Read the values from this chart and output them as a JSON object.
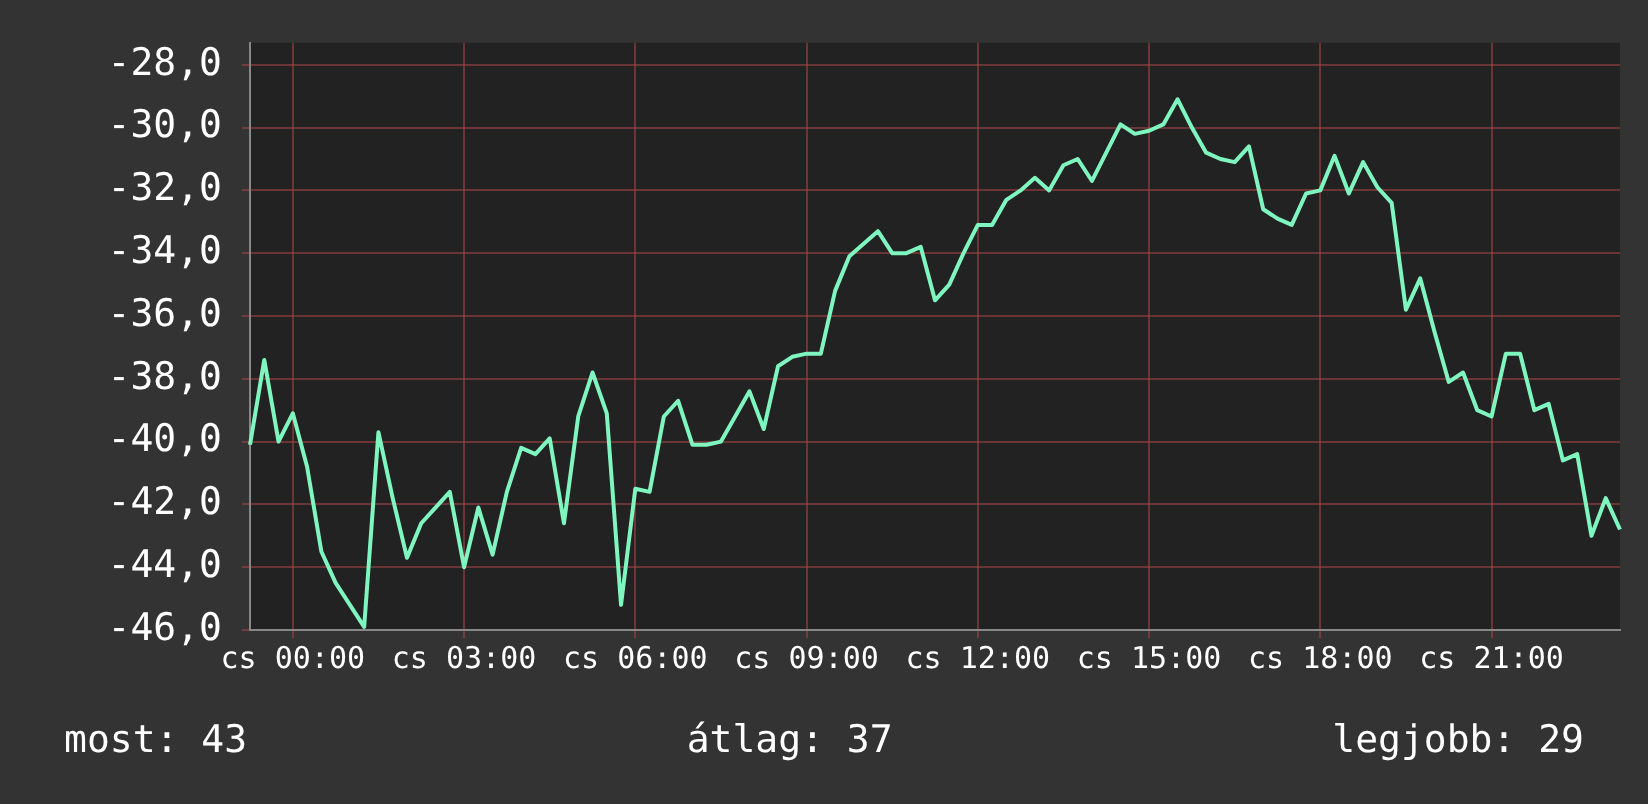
{
  "chart_data": {
    "type": "line",
    "categories": [
      null,
      null,
      null,
      "cs 00:00",
      null,
      null,
      null,
      null,
      null,
      null,
      null,
      null,
      null,
      null,
      null,
      "cs 03:00",
      null,
      null,
      null,
      null,
      null,
      null,
      null,
      null,
      null,
      null,
      null,
      "cs 06:00",
      null,
      null,
      null,
      null,
      null,
      null,
      null,
      null,
      null,
      null,
      null,
      "cs 09:00",
      null,
      null,
      null,
      null,
      null,
      null,
      null,
      null,
      null,
      null,
      null,
      "cs 12:00",
      null,
      null,
      null,
      null,
      null,
      null,
      null,
      null,
      null,
      null,
      null,
      "cs 15:00",
      null,
      null,
      null,
      null,
      null,
      null,
      null,
      null,
      null,
      null,
      null,
      "cs 18:00",
      null,
      null,
      null,
      null,
      null,
      null,
      null,
      null,
      null,
      null,
      null,
      "cs 21:00",
      null,
      null,
      null,
      null,
      null,
      null,
      null,
      null,
      null
    ],
    "series": [
      {
        "color": "#7ff5bf",
        "values": [
          -40.1,
          -37.4,
          -40.0,
          -39.1,
          -40.8,
          -43.5,
          -44.5,
          -45.2,
          -45.9,
          -39.7,
          -41.8,
          -43.7,
          -42.6,
          -42.1,
          -41.6,
          -44.0,
          -42.1,
          -43.6,
          -41.6,
          -40.2,
          -40.4,
          -39.9,
          -42.6,
          -39.2,
          -37.8,
          -39.1,
          -45.2,
          -41.5,
          -41.6,
          -39.2,
          -38.7,
          -40.1,
          -40.1,
          -40.0,
          -39.2,
          -38.4,
          -39.6,
          -37.6,
          -37.3,
          -37.2,
          -37.2,
          -35.2,
          -34.1,
          -33.7,
          -33.3,
          -34.0,
          -34.0,
          -33.8,
          -35.5,
          -35.0,
          -34.0,
          -33.1,
          -33.1,
          -32.3,
          -32.0,
          -31.6,
          -32.0,
          -31.2,
          -31.0,
          -31.7,
          -30.8,
          -29.9,
          -30.2,
          -30.1,
          -29.9,
          -29.1,
          -30.0,
          -30.8,
          -31.0,
          -31.1,
          -30.6,
          -32.6,
          -32.9,
          -33.1,
          -32.1,
          -32.0,
          -30.9,
          -32.1,
          -31.1,
          -31.9,
          -32.4,
          -35.8,
          -34.8,
          -36.5,
          -38.1,
          -37.8,
          -39.0,
          -39.2,
          -37.2,
          -37.2,
          -39.0,
          -38.8,
          -40.6,
          -40.4,
          -43.0,
          -41.8,
          -42.8
        ]
      }
    ],
    "ylim": [
      -46,
      -27.3
    ],
    "yticks": [
      {
        "value": -46,
        "label": "-46,0"
      },
      {
        "value": -44,
        "label": "-44,0"
      },
      {
        "value": -42,
        "label": "-42,0"
      },
      {
        "value": -40,
        "label": "-40,0"
      },
      {
        "value": -38,
        "label": "-38,0"
      },
      {
        "value": -36,
        "label": "-36,0"
      },
      {
        "value": -34,
        "label": "-34,0"
      },
      {
        "value": -32,
        "label": "-32,0"
      },
      {
        "value": -30,
        "label": "-30,0"
      },
      {
        "value": -28,
        "label": "-28,0"
      }
    ],
    "grid": true,
    "marker": "none",
    "annotations": [
      "most: 43",
      "átlag: 37",
      "legjobb: 29"
    ]
  }
}
